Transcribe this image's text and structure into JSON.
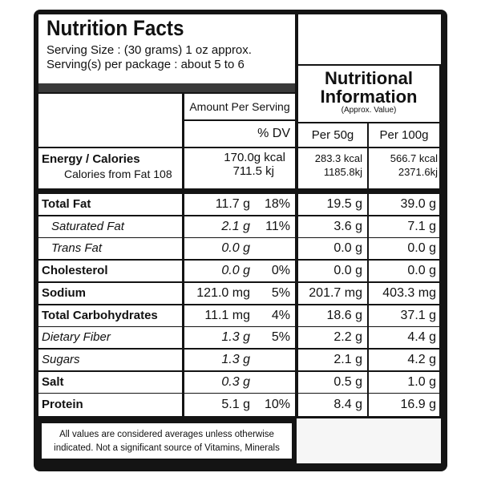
{
  "header": {
    "title": "Nutrition Facts",
    "serving_size": "Serving Size : (30 grams) 1 oz approx.",
    "servings_per_package": "Serving(s) per package : about 5 to 6",
    "amount_per_serving": "Amount Per Serving",
    "dv": "% DV",
    "nutritional_title_1": "Nutritional",
    "nutritional_title_2": "Information",
    "nutritional_subtitle": "(Approx. Value)",
    "per50": "Per 50g",
    "per100": "Per 100g"
  },
  "energy": {
    "label": "Energy / Calories",
    "sublabel": "Calories from Fat 108",
    "serving_kcal": "170.0g kcal",
    "serving_kj": "711.5 kj",
    "per50_kcal": "283.3 kcal",
    "per50_kj": "1185.8kj",
    "per100_kcal": "566.7 kcal",
    "per100_kj": "2371.6kj"
  },
  "nutrients": [
    {
      "name": "Total Fat",
      "style": "bold",
      "amount": "11.7 g",
      "dv": "18%",
      "per50": "19.5 g",
      "per100": "39.0 g"
    },
    {
      "name": "Saturated Fat",
      "style": "italic-indent",
      "amount": "2.1 g",
      "dv": "11%",
      "per50": "3.6 g",
      "per100": "7.1 g"
    },
    {
      "name": "Trans Fat",
      "style": "italic-indent",
      "amount": "0.0 g",
      "dv": "",
      "per50": "0.0 g",
      "per100": "0.0 g"
    },
    {
      "name": "Cholesterol",
      "style": "bold",
      "amount": "0.0 g",
      "dv": "0%",
      "per50": "0.0 g",
      "per100": "0.0 g"
    },
    {
      "name": "Sodium",
      "style": "bold",
      "amount": "121.0 mg",
      "dv": "5%",
      "per50": "201.7 mg",
      "per100": "403.3 mg"
    },
    {
      "name": "Total Carbohydrates",
      "style": "bold",
      "amount": "11.1 mg",
      "dv": "4%",
      "per50": "18.6 g",
      "per100": "37.1 g"
    },
    {
      "name": "Dietary Fiber",
      "style": "italic",
      "amount": "1.3 g",
      "dv": "5%",
      "per50": "2.2 g",
      "per100": "4.4 g"
    },
    {
      "name": "Sugars",
      "style": "italic",
      "amount": "1.3 g",
      "dv": "",
      "per50": "2.1 g",
      "per100": "4.2 g"
    },
    {
      "name": "Salt",
      "style": "bold",
      "amount": "0.3 g",
      "dv": "",
      "per50": "0.5 g",
      "per100": "1.0 g"
    },
    {
      "name": "Protein",
      "style": "bold",
      "amount": "5.1 g",
      "dv": "10%",
      "per50": "8.4 g",
      "per100": "16.9 g"
    }
  ],
  "footnote": {
    "line1": "All values are considered averages unless otherwise",
    "line2": "indicated. Not a significant source of Vitamins, Minerals"
  }
}
